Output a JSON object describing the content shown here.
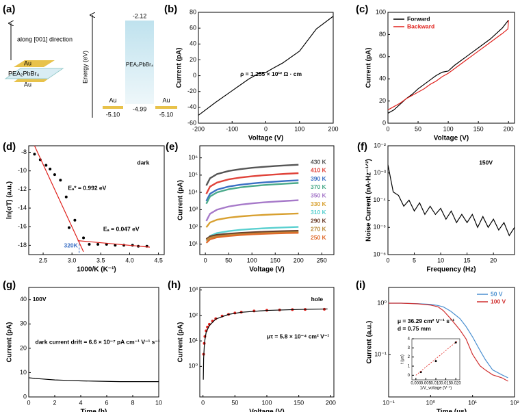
{
  "panel_a": {
    "label": "(a)",
    "direction": "along [001] direction",
    "stack_top": "Au",
    "stack_mid": "PEA₂PbBr₄",
    "stack_bottom": "Au",
    "energy_axis": "Energy (eV)",
    "cbm": "-2.12",
    "material": "PEA₂PbBr₄",
    "vbm": "-4.99",
    "left_metal": "Au",
    "left_level": "-5.10",
    "right_metal": "Au",
    "right_level": "-5.10"
  },
  "chart_data": [
    {
      "label": "(b)",
      "type": "line",
      "xlabel": "Voltage (V)",
      "ylabel": "Current (pA)",
      "xlim": [
        -200,
        200
      ],
      "ylim": [
        -60,
        80
      ],
      "xticks": [
        -200,
        -100,
        0,
        100,
        200
      ],
      "yticks": [
        -60,
        -40,
        -20,
        0,
        20,
        40,
        60,
        80
      ],
      "annotations": [
        "ρ = 1.255 × 10¹² Ω · cm"
      ],
      "series": [
        {
          "color": "#000000",
          "x": [
            -200,
            -150,
            -100,
            -50,
            -20,
            0,
            20,
            50,
            100,
            150,
            200
          ],
          "values": [
            -50,
            -34,
            -19,
            -4,
            3,
            4,
            9,
            16,
            31,
            59,
            75
          ]
        }
      ]
    },
    {
      "label": "(c)",
      "type": "line",
      "xlabel": "Voltage (V)",
      "ylabel": "Current (pA)",
      "xlim": [
        0,
        210
      ],
      "ylim": [
        0,
        100
      ],
      "xticks": [
        0,
        50,
        100,
        150,
        200
      ],
      "yticks": [
        0,
        20,
        40,
        60,
        80,
        100
      ],
      "legend": "upper left",
      "series": [
        {
          "name": "Forward",
          "color": "#000000",
          "x": [
            0,
            10,
            20,
            30,
            40,
            50,
            60,
            70,
            80,
            90,
            100,
            110,
            120,
            130,
            140,
            150,
            160,
            170,
            180,
            190,
            200
          ],
          "values": [
            9,
            12,
            17,
            22,
            26,
            31,
            35,
            39,
            43,
            46,
            47,
            52,
            56,
            60,
            64,
            68,
            72,
            76,
            81,
            86,
            93
          ]
        },
        {
          "name": "Backward",
          "color": "#e0201b",
          "x": [
            200,
            199,
            190,
            180,
            170,
            160,
            150,
            140,
            130,
            120,
            110,
            100,
            90,
            80,
            70,
            60,
            50,
            40,
            30,
            20,
            10,
            0
          ],
          "values": [
            93,
            85,
            81,
            77,
            73,
            69,
            65,
            61,
            57,
            53,
            49,
            45,
            42,
            38,
            35,
            31,
            28,
            25,
            22,
            18,
            15,
            12
          ]
        }
      ]
    },
    {
      "label": "(d)",
      "type": "scatter",
      "xlabel": "1000/K (K⁻¹)",
      "ylabel": "ln(σT) (a.u.)",
      "xlim": [
        2.25,
        4.6
      ],
      "ylim": [
        -19,
        -7.3
      ],
      "xticks": [
        2.5,
        {
          "value": 3,
          "label": "3.0"
        },
        3.5,
        {
          "value": 4,
          "label": "4.0"
        },
        4.5
      ],
      "yticks": [
        -18,
        -16,
        -14,
        -12,
        -10,
        -8
      ],
      "annotations": [
        "dark",
        "Eₐ* = 0.992 eV",
        "Eₐ = 0.047 eV",
        "320K"
      ],
      "marker_x": 3.125,
      "series": [
        {
          "color": "#000000",
          "x": [
            2.35,
            2.45,
            2.55,
            2.62,
            2.7,
            2.8,
            2.9,
            2.95,
            3.05,
            3.2,
            3.3,
            3.45,
            3.6,
            3.75,
            3.9,
            4.05,
            4.15,
            4.3
          ],
          "values": [
            -8.2,
            -8.8,
            -9.4,
            -9.8,
            -10.4,
            -11,
            -12.8,
            -16.1,
            -15.3,
            -17.2,
            -17.9,
            -17.9,
            -17.9,
            -18,
            -18,
            -18,
            -18.1,
            -18.1
          ]
        },
        {
          "type": "line",
          "color": "#e0201b",
          "x": [
            2.35,
            3.2
          ],
          "values": [
            -7.3,
            -18.7
          ]
        },
        {
          "type": "line",
          "color": "#e0201b",
          "x": [
            3.1,
            4.35
          ],
          "values": [
            -17.5,
            -18.2
          ]
        }
      ]
    },
    {
      "label": "(e)",
      "type": "line",
      "xlabel": "Voltage (V)",
      "ylabel": "Current (pA)",
      "xlim": [
        -12,
        276
      ],
      "ylim": [
        2.5,
        5000000
      ],
      "ylog": true,
      "xticks": [
        0,
        50,
        100,
        150,
        200,
        250
      ],
      "yticks": [
        {
          "value": 10,
          "label": "10¹"
        },
        {
          "value": 100,
          "label": "10²"
        },
        {
          "value": 1000,
          "label": "10³"
        },
        {
          "value": 10000,
          "label": "10⁴"
        },
        {
          "value": 100000,
          "label": "10⁵"
        },
        {
          "value": 1000000,
          "label": "10⁶"
        }
      ],
      "legend": "right",
      "series": [
        {
          "name": "430 K",
          "color": "#555555",
          "x": [
            2,
            10,
            25,
            50,
            75,
            100,
            125,
            150,
            175,
            200
          ],
          "values": [
            25000,
            66000,
            115000,
            174000,
            222000,
            264000,
            302000,
            336000,
            369000,
            400000
          ]
        },
        {
          "name": "410 K",
          "color": "#e0433a",
          "x": [
            2,
            10,
            25,
            50,
            75,
            100,
            125,
            150,
            175,
            200
          ],
          "values": [
            8200,
            21600,
            37300,
            56600,
            72200,
            85800,
            98000,
            109000,
            120000,
            130000
          ]
        },
        {
          "name": "390 K",
          "color": "#3a6fc4",
          "x": [
            2,
            10,
            25,
            50,
            75,
            100,
            125,
            150,
            175,
            200
          ],
          "values": [
            3150,
            8300,
            14400,
            21800,
            27800,
            33000,
            37700,
            42000,
            46200,
            50000
          ]
        },
        {
          "name": "370 K",
          "color": "#4aaa8a",
          "x": [
            2,
            10,
            25,
            50,
            75,
            100,
            125,
            150,
            175,
            200
          ],
          "values": [
            2200,
            5800,
            10000,
            15200,
            19400,
            23100,
            26400,
            29400,
            32300,
            35000
          ]
        },
        {
          "name": "350 K",
          "color": "#a679c9",
          "x": [
            2,
            10,
            25,
            50,
            75,
            100,
            125,
            150,
            175,
            200
          ],
          "values": [
            220,
            580,
            1000,
            1520,
            1940,
            2310,
            2640,
            2940,
            3230,
            3500
          ]
        },
        {
          "name": "330 K",
          "color": "#d8a030",
          "x": [
            2,
            10,
            25,
            50,
            75,
            100,
            125,
            150,
            175,
            200
          ],
          "values": [
            95,
            181,
            261,
            344,
            405,
            455,
            497,
            535,
            569,
            600
          ]
        },
        {
          "name": "310 K",
          "color": "#5ad0d0",
          "x": [
            2,
            10,
            25,
            50,
            75,
            100,
            125,
            150,
            175,
            200
          ],
          "values": [
            16,
            30,
            44,
            57,
            68,
            76,
            83,
            89,
            95,
            100
          ]
        },
        {
          "name": "290 K",
          "color": "#6a3d2a",
          "x": [
            2,
            10,
            25,
            50,
            75,
            100,
            125,
            150,
            175,
            200
          ],
          "values": [
            20,
            28,
            35,
            40,
            45,
            49,
            52,
            55,
            58,
            60
          ]
        },
        {
          "name": "270 K",
          "color": "#b88a3a",
          "x": [
            2,
            10,
            25,
            50,
            75,
            100,
            125,
            150,
            175,
            200
          ],
          "values": [
            17,
            24,
            29,
            34,
            38,
            41,
            44,
            46,
            48,
            50
          ]
        },
        {
          "name": "250 K",
          "color": "#e06a2a",
          "x": [
            2,
            10,
            25,
            50,
            75,
            100,
            125,
            150,
            175,
            200
          ],
          "values": [
            12,
            19,
            25,
            30,
            34,
            37,
            40,
            42,
            44,
            45
          ]
        }
      ]
    },
    {
      "label": "(f)",
      "type": "line",
      "xlabel": "Frequency (Hz)",
      "ylabel": "Noise Current (nA·Hz⁻¹ᐟ²)",
      "xlim": [
        0,
        24
      ],
      "ylim": [
        1e-06,
        0.01
      ],
      "ylog": true,
      "xticks": [
        0,
        5,
        10,
        15,
        20
      ],
      "yticks": [
        {
          "value": 1e-06,
          "label": "10⁻⁶"
        },
        {
          "value": 1e-05,
          "label": "10⁻⁵"
        },
        {
          "value": 0.0001,
          "label": "10⁻⁴"
        },
        {
          "value": 0.001,
          "label": "10⁻³"
        },
        {
          "value": 0.01,
          "label": "10⁻²"
        }
      ],
      "annotations": [
        "150V"
      ],
      "series": [
        {
          "color": "#000000",
          "x": [
            0,
            1,
            2,
            3,
            4,
            5,
            6,
            7,
            8,
            9,
            10,
            11,
            12,
            13,
            14,
            15,
            16,
            17,
            18,
            19,
            20,
            21,
            22,
            23,
            24
          ],
          "values": [
            0.002,
            0.0002,
            0.00015,
            6e-05,
            0.0001,
            4e-05,
            8e-05,
            3e-05,
            6e-05,
            3e-05,
            5e-05,
            2e-05,
            4e-05,
            1.5e-05,
            3e-05,
            1.5e-05,
            3e-05,
            1e-05,
            2.5e-05,
            1e-05,
            2e-05,
            8e-06,
            1.5e-05,
            5e-06,
            1e-05
          ]
        }
      ]
    },
    {
      "label": "(g)",
      "type": "line",
      "xlabel": "Time (h)",
      "ylabel": "Current (pA)",
      "xlim": [
        0,
        10
      ],
      "ylim": [
        0,
        45
      ],
      "xticks": [
        0,
        2,
        4,
        6,
        8,
        10
      ],
      "yticks": [
        0,
        10,
        20,
        30,
        40
      ],
      "annotations": [
        "100V",
        "dark current drift = 6.6 × 10⁻⁷ pA cm⁻¹ V⁻¹ s⁻¹"
      ],
      "series": [
        {
          "color": "#000000",
          "x": [
            0,
            0.5,
            1,
            2,
            3,
            4,
            5,
            6,
            7,
            8,
            9,
            10
          ],
          "values": [
            7.9,
            7.6,
            7.4,
            7,
            6.8,
            6.6,
            6.5,
            6.4,
            6.3,
            6.3,
            6.3,
            6.3
          ]
        }
      ]
    },
    {
      "label": "(h)",
      "type": "scatter",
      "xlabel": "Voltage (V)",
      "ylabel": "Current (pA)",
      "xlim": [
        -5,
        205
      ],
      "ylim": [
        0.063,
        1260
      ],
      "ylog": true,
      "xticks": [
        0,
        50,
        100,
        150,
        200
      ],
      "yticks": [
        {
          "value": 1,
          "label": "10⁰"
        },
        {
          "value": 10,
          "label": "10¹"
        },
        {
          "value": 100,
          "label": "10²"
        },
        {
          "value": 1000,
          "label": "10³"
        }
      ],
      "annotations": [
        "hole",
        "μτ = 5.8 × 10⁻⁴ cm² V⁻¹"
      ],
      "series": [
        {
          "color": "#e0201b",
          "x": [
            1,
            2,
            3,
            5,
            7,
            10,
            15,
            20,
            30,
            40,
            50,
            60,
            80,
            100,
            120,
            140,
            160,
            190
          ],
          "values": [
            3,
            8,
            15,
            25,
            35,
            45,
            60,
            75,
            95,
            110,
            125,
            135,
            150,
            160,
            165,
            170,
            172,
            175
          ]
        },
        {
          "type": "line",
          "color": "#000000",
          "x": [
            0.5,
            1,
            2,
            3,
            5,
            10,
            20,
            40,
            60,
            100,
            150,
            195
          ],
          "values": [
            0.3,
            2,
            6,
            11,
            22,
            40,
            72,
            110,
            133,
            158,
            172,
            180
          ]
        }
      ]
    },
    {
      "label": "(i)",
      "type": "line",
      "xlabel": "Time (μs)",
      "ylabel": "Current (a.u.)",
      "xlim": [
        0.1,
        100
      ],
      "ylim": [
        0.0148,
        2.03
      ],
      "xlog": true,
      "ylog": true,
      "xticks": [
        {
          "value": 0.1,
          "label": "10⁻¹"
        },
        {
          "value": 1,
          "label": "10⁰"
        },
        {
          "value": 10,
          "label": "10¹"
        },
        {
          "value": 100,
          "label": "10²"
        }
      ],
      "yticks": [
        {
          "value": 0.1,
          "label": "10⁻¹"
        },
        {
          "value": 1,
          "label": "10⁰"
        }
      ],
      "legend": "upper right",
      "annotations": [
        "μ = 36.29 cm² V⁻¹ s⁻¹",
        "d = 0.75 mm"
      ],
      "series": [
        {
          "name": "50  V",
          "color": "#4a8fd0",
          "x": [
            0.1,
            0.2,
            0.5,
            1,
            1.5,
            2,
            3,
            5,
            7,
            10,
            15,
            20,
            30,
            50,
            70
          ],
          "values": [
            1,
            1,
            0.98,
            0.95,
            0.9,
            0.85,
            0.7,
            0.5,
            0.35,
            0.22,
            0.12,
            0.08,
            0.05,
            0.04,
            0.035
          ]
        },
        {
          "name": "100  V",
          "color": "#d03030",
          "x": [
            0.1,
            0.2,
            0.5,
            1,
            1.5,
            2,
            3,
            5,
            7,
            10,
            15,
            20,
            30,
            50,
            70
          ],
          "values": [
            1,
            1,
            0.97,
            0.92,
            0.85,
            0.72,
            0.5,
            0.3,
            0.2,
            0.1,
            0.06,
            0.05,
            0.04,
            0.035,
            0.03
          ]
        }
      ],
      "inset": {
        "type": "scatter",
        "xlabel": "1/V_voltage (V⁻¹)",
        "ylabel": "t (μs)",
        "xlim": [
          -0.002,
          0.022
        ],
        "ylim": [
          -0.5,
          4
        ],
        "xticks": [
          {
            "value": 0,
            "label": "0.000"
          },
          {
            "value": 0.005,
            "label": "0.005"
          },
          {
            "value": 0.01,
            "label": "0.010"
          },
          {
            "value": 0.015,
            "label": "0.015"
          },
          {
            "value": 0.02,
            "label": "0.020"
          }
        ],
        "yticks": [
          0,
          1,
          2,
          3,
          4
        ],
        "series": [
          {
            "color": "#000000",
            "x": [
              0.0025,
              0.01,
              0.02
            ],
            "values": [
              0.35,
              1.55,
              3.6
            ]
          },
          {
            "type": "line",
            "dash": true,
            "color": "#e0201b",
            "x": [
              0,
              0.021
            ],
            "values": [
              0,
              3.8
            ]
          }
        ]
      }
    }
  ]
}
